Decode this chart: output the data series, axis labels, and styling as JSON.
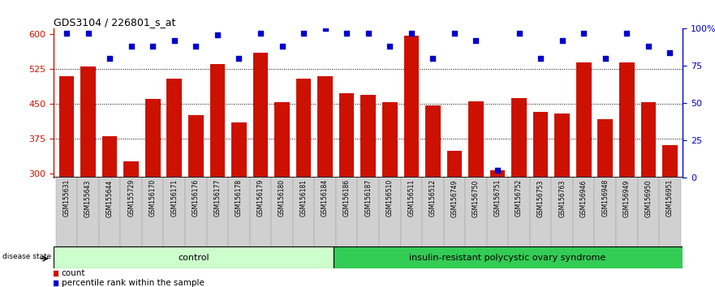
{
  "title": "GDS3104 / 226801_s_at",
  "samples": [
    "GSM155631",
    "GSM155643",
    "GSM155644",
    "GSM155729",
    "GSM156170",
    "GSM156171",
    "GSM156176",
    "GSM156177",
    "GSM156178",
    "GSM156179",
    "GSM156180",
    "GSM156181",
    "GSM156184",
    "GSM156186",
    "GSM156187",
    "GSM156510",
    "GSM156511",
    "GSM156512",
    "GSM156749",
    "GSM156750",
    "GSM156751",
    "GSM156752",
    "GSM156753",
    "GSM156763",
    "GSM156946",
    "GSM156948",
    "GSM156949",
    "GSM156950",
    "GSM156951"
  ],
  "counts": [
    510,
    530,
    380,
    325,
    460,
    505,
    425,
    535,
    410,
    560,
    453,
    505,
    510,
    473,
    470,
    453,
    597,
    447,
    349,
    455,
    307,
    463,
    433,
    429,
    540,
    416,
    540,
    453,
    360
  ],
  "percentile_ranks": [
    97,
    97,
    80,
    88,
    88,
    92,
    88,
    96,
    80,
    97,
    88,
    97,
    100,
    97,
    97,
    88,
    97,
    80,
    97,
    92,
    5,
    97,
    80,
    92,
    97,
    80,
    97,
    88,
    84
  ],
  "control_count": 13,
  "disease_label": "insulin-resistant polycystic ovary syndrome",
  "control_label": "control",
  "disease_state_label": "disease state",
  "y_min": 290,
  "y_max": 612,
  "yticks": [
    300,
    375,
    450,
    525,
    600
  ],
  "right_yticks": [
    0,
    25,
    50,
    75,
    100
  ],
  "bar_color": "#CC1100",
  "dot_color": "#0000CC",
  "control_bg": "#CCFFCC",
  "disease_bg": "#33CC55",
  "tick_label_bg": "#D0D0D0",
  "legend_count_label": "count",
  "legend_pct_label": "percentile rank within the sample"
}
